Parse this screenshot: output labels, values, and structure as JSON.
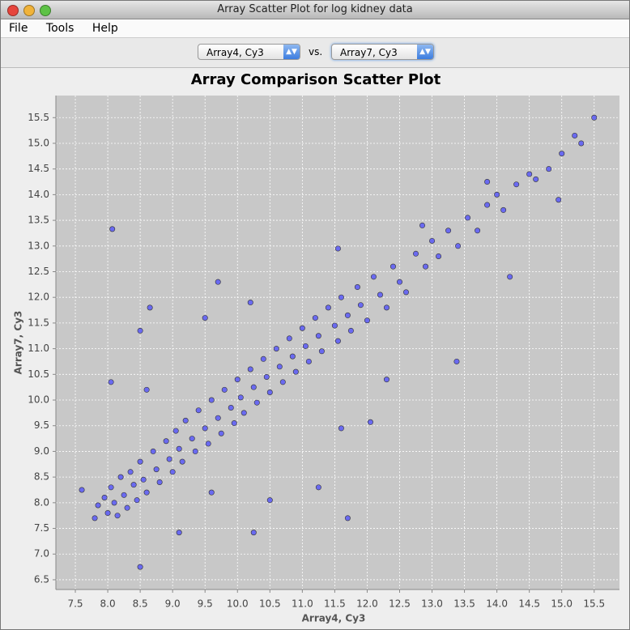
{
  "window": {
    "title": "Array Scatter Plot for log kidney data"
  },
  "menu": {
    "items": [
      "File",
      "Tools",
      "Help"
    ]
  },
  "toolbar": {
    "x_select": "Array4, Cy3",
    "vs": "vs.",
    "y_select": "Array7, Cy3"
  },
  "chart_data": {
    "type": "scatter",
    "title": "Array Comparison Scatter Plot",
    "x_label": "Array4, Cy3",
    "y_label": "Array7, Cy3",
    "color": "#6a6af0",
    "grid": true,
    "xlim": [
      7.2,
      15.89
    ],
    "ylim": [
      6.31,
      15.93
    ],
    "xticks": [
      7.5,
      {
        "value": 8,
        "label": "8.0"
      },
      8.5,
      {
        "value": 9,
        "label": "9.0"
      },
      9.5,
      {
        "value": 10,
        "label": "10.0"
      },
      10.5,
      {
        "value": 11,
        "label": "11.0"
      },
      11.5,
      {
        "value": 12,
        "label": "12.0"
      },
      12.5,
      {
        "value": 13,
        "label": "13.0"
      },
      13.5,
      {
        "value": 14,
        "label": "14.0"
      },
      14.5,
      {
        "value": 15,
        "label": "15.0"
      },
      15.5
    ],
    "yticks": [
      6.5,
      {
        "value": 7,
        "label": "7.0"
      },
      7.5,
      {
        "value": 8,
        "label": "8.0"
      },
      8.5,
      {
        "value": 9,
        "label": "9.0"
      },
      9.5,
      {
        "value": 10,
        "label": "10.0"
      },
      10.5,
      {
        "value": 11,
        "label": "11.0"
      },
      11.5,
      {
        "value": 12,
        "label": "12.0"
      },
      12.5,
      {
        "value": 13,
        "label": "13.0"
      },
      13.5,
      {
        "value": 14,
        "label": "14.0"
      },
      14.5,
      {
        "value": 15,
        "label": "15.0"
      },
      15.5
    ],
    "x": [
      7.6,
      7.8,
      7.85,
      7.95,
      8.0,
      8.05,
      8.1,
      8.15,
      8.2,
      8.25,
      8.3,
      8.35,
      8.4,
      8.45,
      8.5,
      8.55,
      8.6,
      8.7,
      8.75,
      8.8,
      8.9,
      8.95,
      9.0,
      9.05,
      9.1,
      9.15,
      9.2,
      9.3,
      9.35,
      9.4,
      9.5,
      9.55,
      9.6,
      9.7,
      9.75,
      9.8,
      9.9,
      9.95,
      10.0,
      10.05,
      10.1,
      10.2,
      10.25,
      10.3,
      10.4,
      10.45,
      10.5,
      10.6,
      10.65,
      10.7,
      10.8,
      10.85,
      10.9,
      11.0,
      11.05,
      11.1,
      11.2,
      11.25,
      11.3,
      11.4,
      11.5,
      11.55,
      11.6,
      11.7,
      11.75,
      11.85,
      11.9,
      12.0,
      12.1,
      12.2,
      12.3,
      12.4,
      12.5,
      12.6,
      12.75,
      12.9,
      13.0,
      13.1,
      13.25,
      13.4,
      13.55,
      13.7,
      13.85,
      14.0,
      14.1,
      14.3,
      14.5,
      14.6,
      14.8,
      15.0,
      15.2,
      15.3,
      15.5,
      8.07,
      9.7,
      8.65,
      8.5,
      9.1,
      10.25,
      13.38,
      14.2,
      14.95,
      8.05,
      10.5,
      11.7,
      11.6,
      12.05,
      8.5,
      9.5,
      11.55,
      12.85,
      13.85,
      11.25,
      9.6,
      12.3,
      8.6,
      10.2
    ],
    "y": [
      8.25,
      7.7,
      7.95,
      8.1,
      7.8,
      8.3,
      8.0,
      7.75,
      8.5,
      8.15,
      7.9,
      8.6,
      8.35,
      8.05,
      8.8,
      8.45,
      8.2,
      9.0,
      8.65,
      8.4,
      9.2,
      8.85,
      8.6,
      9.4,
      9.05,
      8.8,
      9.6,
      9.25,
      9.0,
      9.8,
      9.45,
      9.15,
      10.0,
      9.65,
      9.35,
      10.2,
      9.85,
      9.55,
      10.4,
      10.05,
      9.75,
      10.6,
      10.25,
      9.95,
      10.8,
      10.45,
      10.15,
      11.0,
      10.65,
      10.35,
      11.2,
      10.85,
      10.55,
      11.4,
      11.05,
      10.75,
      11.6,
      11.25,
      10.95,
      11.8,
      11.45,
      11.15,
      12.0,
      11.65,
      11.35,
      12.2,
      11.85,
      11.55,
      12.4,
      12.05,
      11.8,
      12.6,
      12.3,
      12.1,
      12.85,
      12.6,
      13.1,
      12.8,
      13.3,
      13.0,
      13.55,
      13.3,
      13.8,
      14.0,
      13.7,
      14.2,
      14.4,
      14.3,
      14.5,
      14.8,
      15.15,
      15.0,
      15.5,
      13.33,
      12.3,
      11.8,
      6.75,
      7.42,
      7.42,
      10.75,
      12.4,
      13.9,
      10.35,
      8.05,
      7.7,
      9.45,
      9.57,
      11.35,
      11.6,
      12.95,
      13.4,
      14.25,
      8.3,
      8.2,
      10.4,
      10.2,
      11.9
    ]
  }
}
